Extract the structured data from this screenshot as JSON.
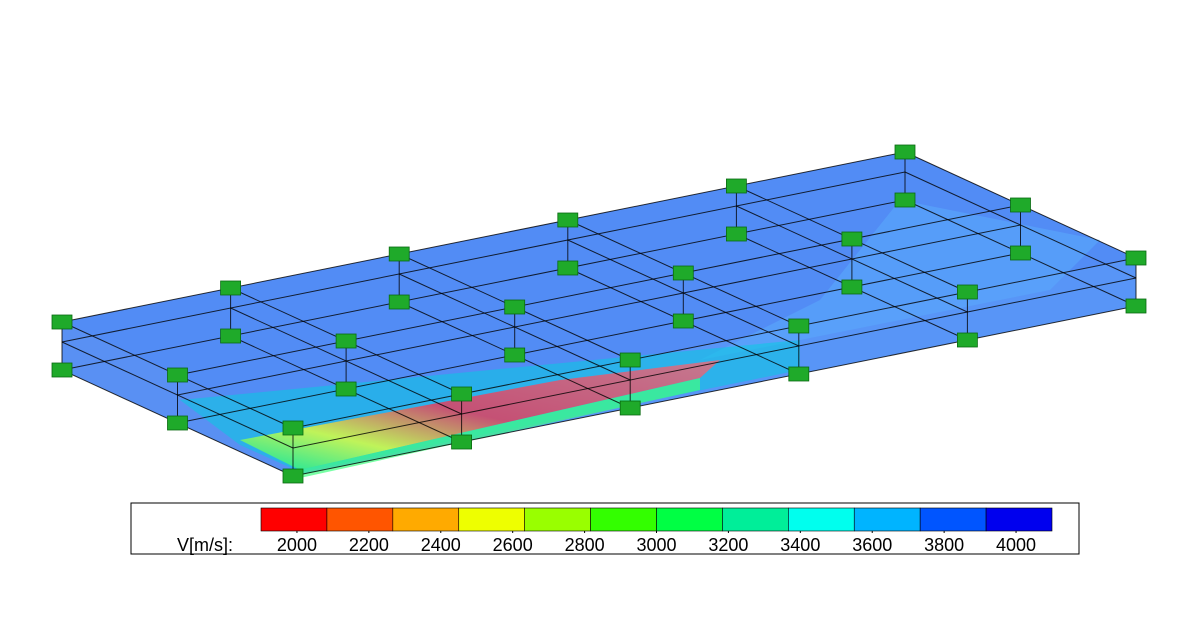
{
  "colorbar": {
    "label": "V[m/s]:",
    "range": [
      1900,
      4100
    ],
    "ticks": [
      2000,
      2200,
      2400,
      2600,
      2800,
      3000,
      3200,
      3400,
      3600,
      3800,
      4000
    ],
    "colors": [
      "#ff0000",
      "#ff5500",
      "#ffaa00",
      "#eeff00",
      "#99ff00",
      "#33ff00",
      "#00ff44",
      "#00ee99",
      "#00ffee",
      "#00b4ff",
      "#0055ff",
      "#0000ee"
    ]
  }
}
